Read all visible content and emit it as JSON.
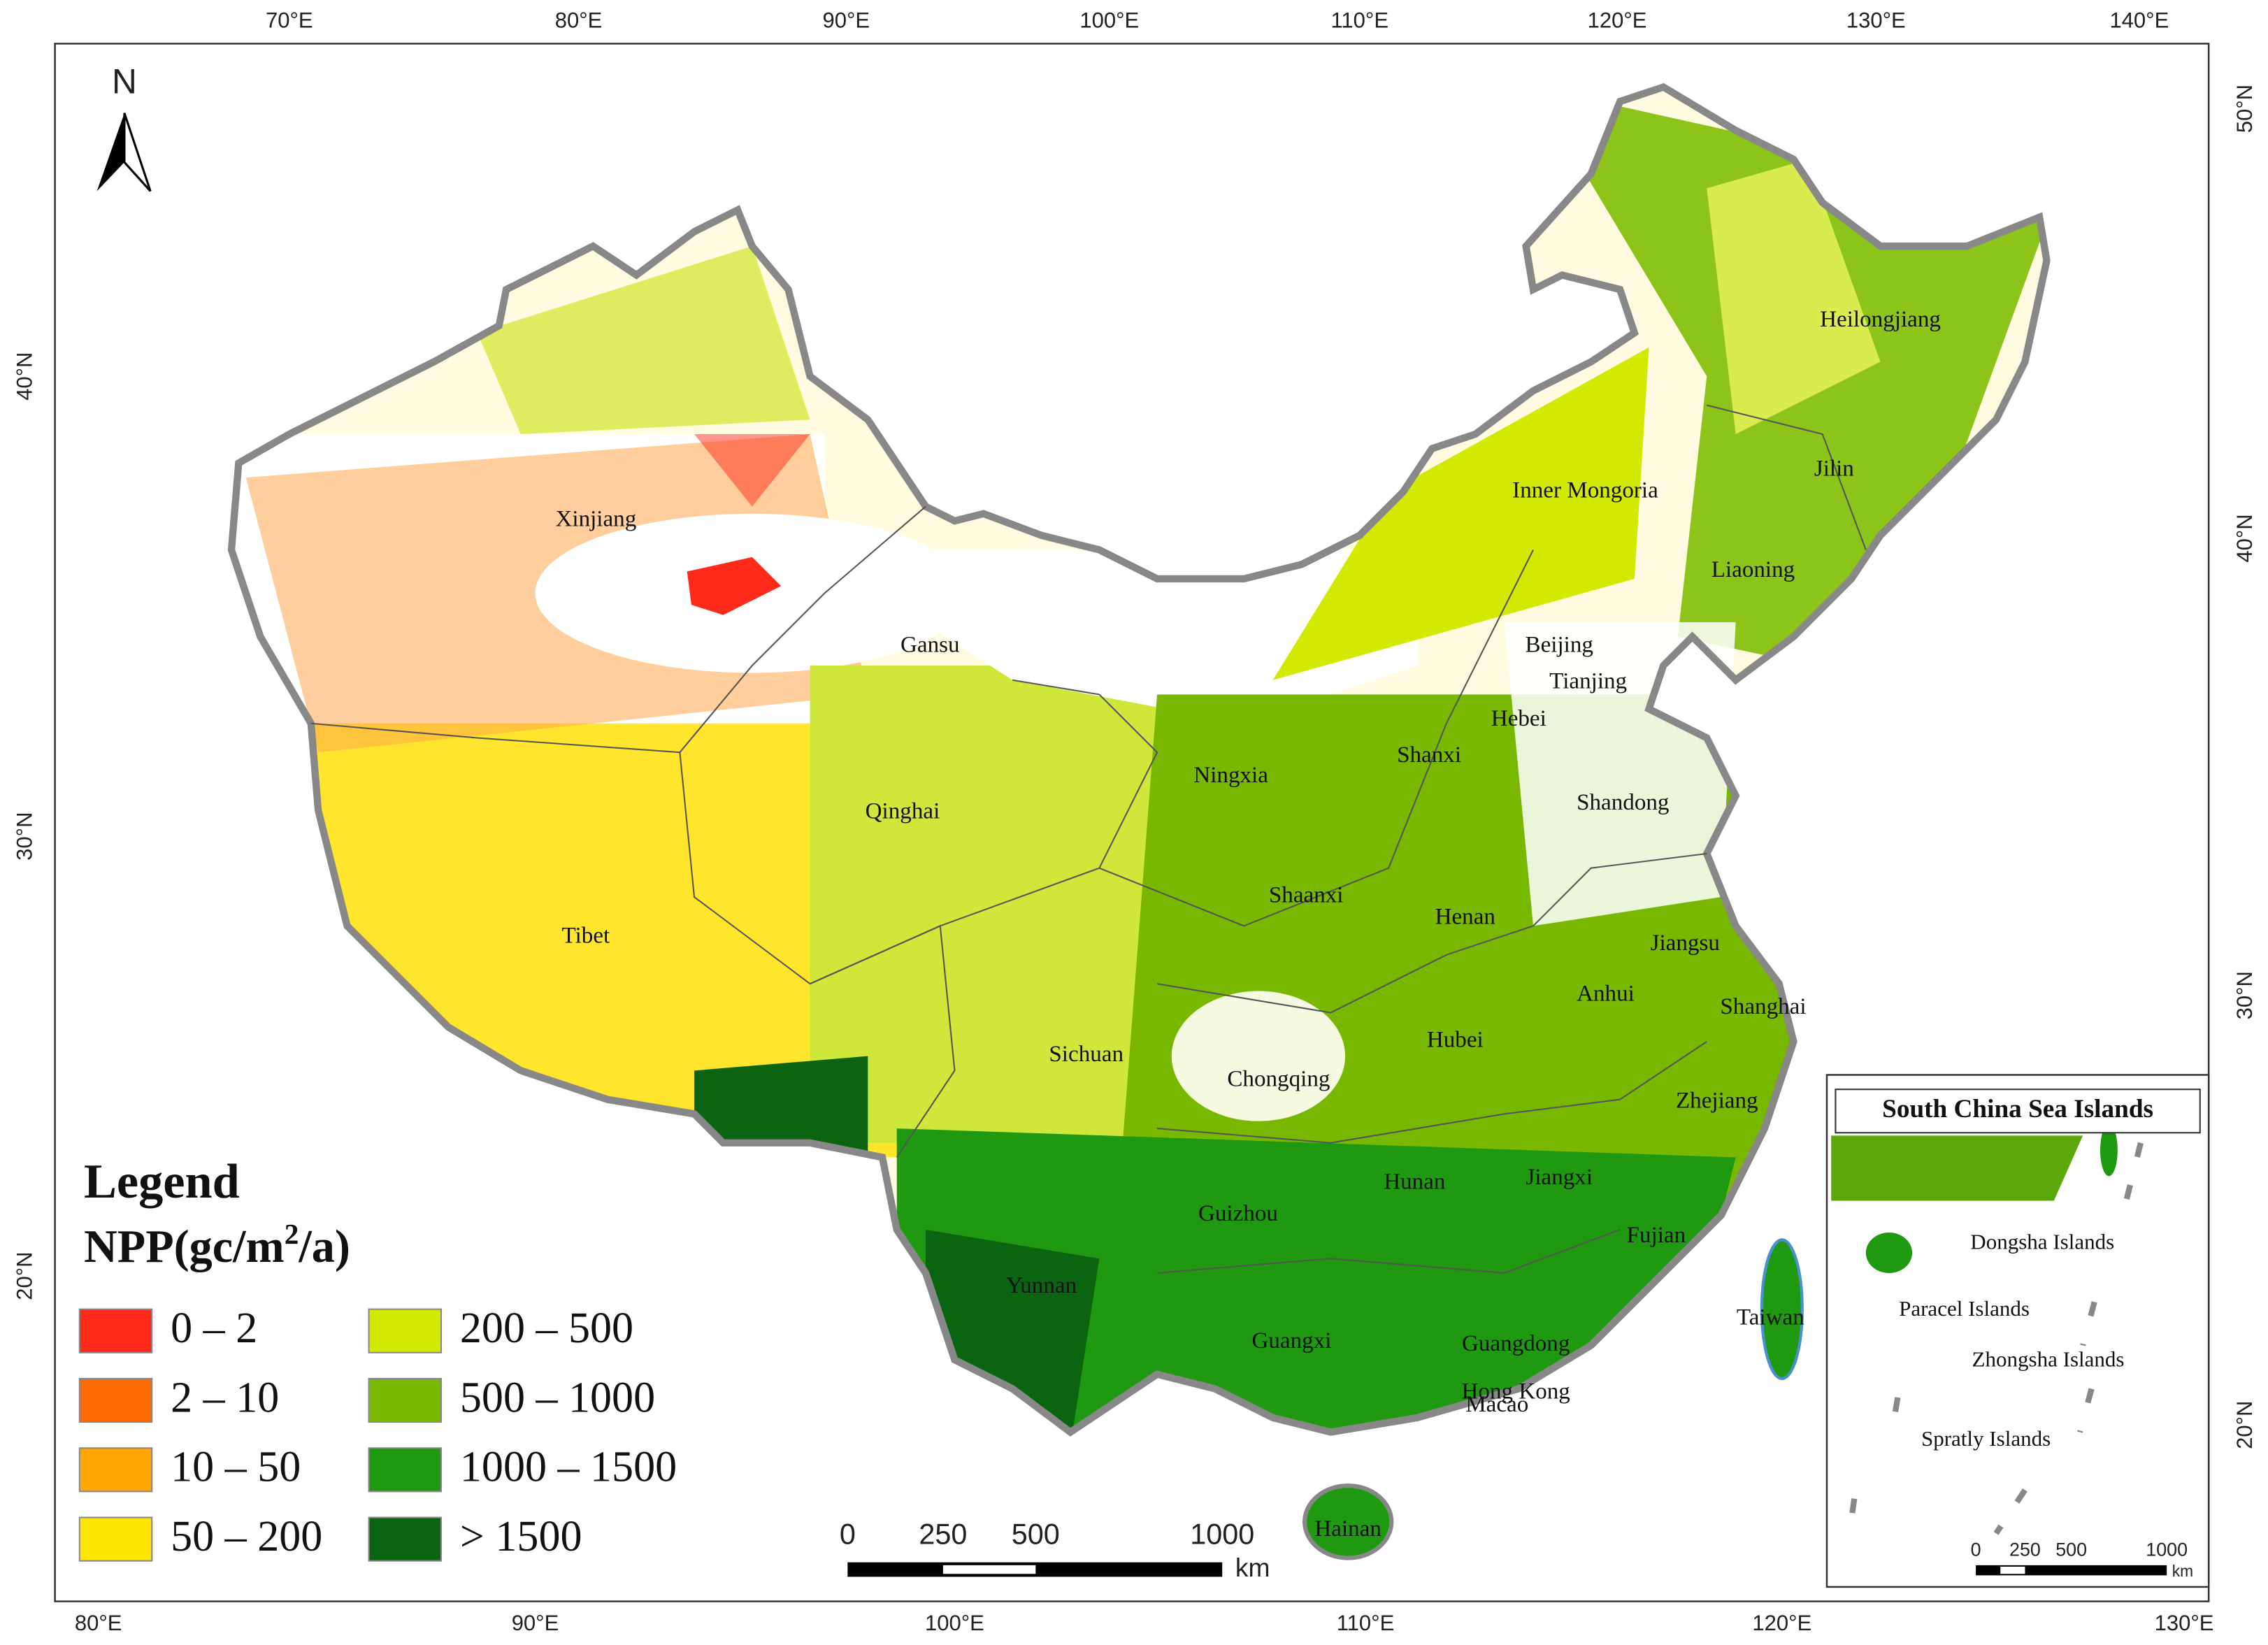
{
  "north": "N",
  "axes": {
    "top": [
      "70°E",
      "80°E",
      "90°E",
      "100°E",
      "110°E",
      "120°E",
      "130°E",
      "140°E"
    ],
    "bottom": [
      "80°E",
      "90°E",
      "100°E",
      "110°E",
      "120°E",
      "130°E"
    ],
    "left": [
      "40°N",
      "30°N",
      "20°N"
    ],
    "right": [
      "50°N",
      "40°N",
      "30°N",
      "20°N"
    ]
  },
  "legend": {
    "title": "Legend",
    "subtitle": {
      "text": "NPP(gc/m",
      "superscript": "2",
      "tail": "/a)"
    },
    "items": [
      {
        "label": "0 – 2",
        "color": "#ff2a1a"
      },
      {
        "label": "2 – 10",
        "color": "#ff6a00"
      },
      {
        "label": "10 – 50",
        "color": "#ffa600"
      },
      {
        "label": "50 – 200",
        "color": "#ffe600"
      },
      {
        "label": "200 – 500",
        "color": "#d2ea00"
      },
      {
        "label": "500 – 1000",
        "color": "#78b800"
      },
      {
        "label": "1000 – 1500",
        "color": "#1f9a10"
      },
      {
        "label": "> 1500",
        "color": "#0a6410"
      }
    ]
  },
  "provinces": [
    "Xinjiang",
    "Gansu",
    "Qinghai",
    "Tibet",
    "Sichuan",
    "Chongqing",
    "Guizhou",
    "Yunnan",
    "Guangxi",
    "Guangdong",
    "Hong Kong",
    "Macao",
    "Hainan",
    "Hunan",
    "Jiangxi",
    "Fujian",
    "Taiwan",
    "Zhejiang",
    "Shanghai",
    "Jiangsu",
    "Anhui",
    "Hubei",
    "Henan",
    "Shaanxi",
    "Ningxia",
    "Shanxi",
    "Hebei",
    "Beijing",
    "Tianjing",
    "Shandong",
    "Liaoning",
    "Jilin",
    "Heilongjiang",
    "Inner Mongoria"
  ],
  "scale_bar": {
    "labels": [
      "0",
      "250",
      "500",
      "1000"
    ],
    "unit": "km"
  },
  "inset": {
    "title": "South China Sea Islands",
    "islands": [
      "Dongsha Islands",
      "Paracel Islands",
      "Zhongsha Islands",
      "Spratly Islands"
    ],
    "scale_labels": [
      "0",
      "250",
      "500",
      "1000"
    ],
    "unit": "km"
  }
}
